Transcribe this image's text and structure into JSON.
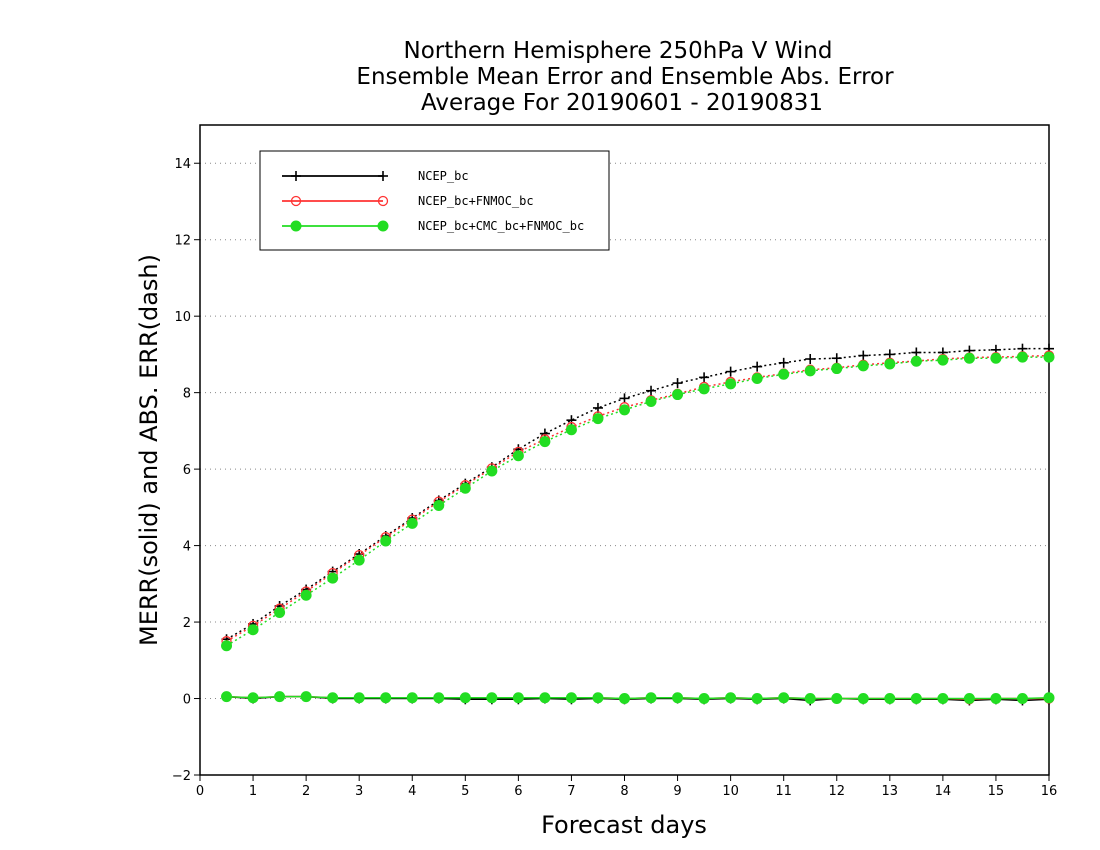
{
  "chart_data": {
    "type": "line",
    "title_lines": [
      "Northern Hemisphere 250hPa V Wind",
      "Ensemble Mean Error and Ensemble Abs. Error",
      "Average For 20190601 - 20190831"
    ],
    "xlabel": "Forecast days",
    "ylabel": "MERR(solid) and ABS. ERR(dash)",
    "xlim": [
      0,
      16
    ],
    "ylim": [
      -2,
      15
    ],
    "xticks": [
      "0",
      "1",
      "2",
      "3",
      "4",
      "5",
      "6",
      "7",
      "8",
      "9",
      "10",
      "11",
      "12",
      "13",
      "14",
      "15",
      "16"
    ],
    "yticks": [
      "−2",
      "0",
      "2",
      "4",
      "6",
      "8",
      "10",
      "12",
      "14"
    ],
    "ytick_values": [
      -2,
      0,
      2,
      4,
      6,
      8,
      10,
      12,
      14
    ],
    "grid": "horizontal dotted",
    "legend_position": "top-left",
    "x": [
      0.5,
      1,
      1.5,
      2,
      2.5,
      3,
      3.5,
      4,
      4.5,
      5,
      5.5,
      6,
      6.5,
      7,
      7.5,
      8,
      8.5,
      9,
      9.5,
      10,
      10.5,
      11,
      11.5,
      12,
      12.5,
      13,
      13.5,
      14,
      14.5,
      15,
      15.5,
      16
    ],
    "series": [
      {
        "name": "NCEP_bc",
        "color": "#000000",
        "marker": "plus",
        "merr": [
          0.05,
          0.0,
          0.05,
          0.05,
          0.0,
          0.0,
          0.0,
          0.0,
          0.0,
          -0.02,
          -0.02,
          -0.02,
          0.0,
          -0.02,
          0.0,
          -0.02,
          0.0,
          0.0,
          -0.02,
          0.0,
          -0.02,
          0.0,
          -0.05,
          0.0,
          -0.02,
          -0.02,
          -0.02,
          -0.02,
          -0.05,
          -0.02,
          -0.05,
          -0.02
        ],
        "abs_err": [
          1.55,
          1.95,
          2.42,
          2.85,
          3.32,
          3.78,
          4.25,
          4.72,
          5.18,
          5.62,
          6.05,
          6.52,
          6.93,
          7.28,
          7.6,
          7.85,
          8.05,
          8.25,
          8.4,
          8.55,
          8.68,
          8.78,
          8.88,
          8.9,
          8.97,
          9.0,
          9.05,
          9.05,
          9.1,
          9.12,
          9.15,
          9.15
        ]
      },
      {
        "name": "NCEP_bc+FNMOC_bc",
        "color": "#ff3333",
        "marker": "open-circle",
        "merr": [
          0.05,
          0.02,
          0.05,
          0.05,
          0.02,
          0.02,
          0.02,
          0.02,
          0.02,
          0.02,
          0.02,
          0.02,
          0.02,
          0.02,
          0.02,
          0.0,
          0.02,
          0.02,
          0.0,
          0.02,
          0.0,
          0.02,
          0.0,
          0.0,
          0.0,
          0.0,
          0.0,
          0.0,
          -0.02,
          0.0,
          0.0,
          0.0
        ],
        "abs_err": [
          1.5,
          1.9,
          2.35,
          2.8,
          3.28,
          3.75,
          4.22,
          4.68,
          5.15,
          5.58,
          6.02,
          6.45,
          6.78,
          7.1,
          7.38,
          7.62,
          7.8,
          7.97,
          8.15,
          8.28,
          8.4,
          8.5,
          8.6,
          8.65,
          8.73,
          8.78,
          8.83,
          8.88,
          8.92,
          8.93,
          8.95,
          8.97
        ]
      },
      {
        "name": "NCEP_bc+CMC_bc+FNMOC_bc",
        "color": "#22dd22",
        "marker": "filled-circle",
        "merr": [
          0.05,
          0.02,
          0.05,
          0.05,
          0.02,
          0.02,
          0.02,
          0.02,
          0.02,
          0.02,
          0.02,
          0.02,
          0.02,
          0.02,
          0.02,
          0.0,
          0.02,
          0.02,
          0.0,
          0.02,
          0.0,
          0.02,
          0.0,
          0.0,
          0.0,
          0.0,
          0.0,
          0.0,
          0.0,
          0.0,
          0.0,
          0.02
        ],
        "abs_err": [
          1.38,
          1.8,
          2.25,
          2.7,
          3.15,
          3.62,
          4.12,
          4.58,
          5.05,
          5.5,
          5.95,
          6.35,
          6.72,
          7.03,
          7.32,
          7.55,
          7.77,
          7.95,
          8.1,
          8.23,
          8.37,
          8.48,
          8.57,
          8.63,
          8.7,
          8.75,
          8.82,
          8.85,
          8.9,
          8.9,
          8.93,
          8.93
        ]
      }
    ]
  }
}
